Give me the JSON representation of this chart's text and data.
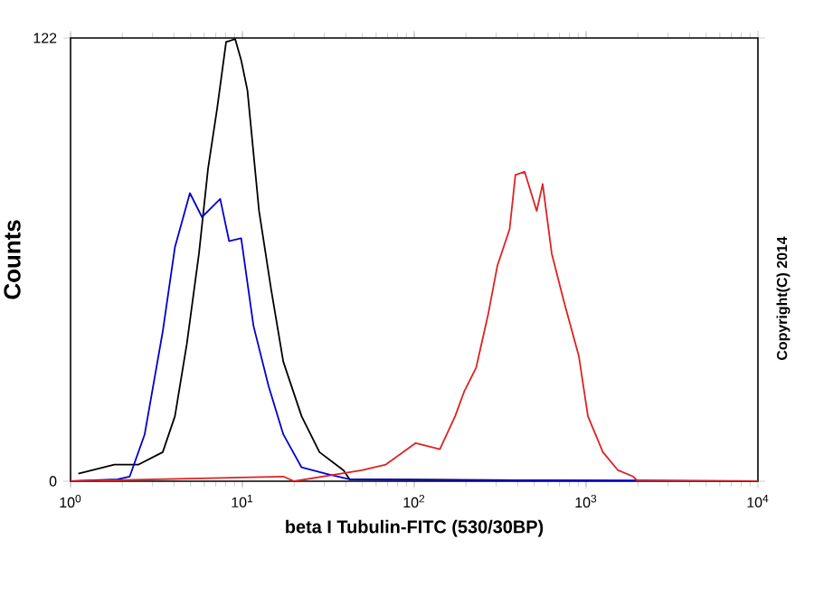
{
  "chart_data": {
    "type": "line",
    "log": "x",
    "xlabel": "beta I Tubulin-FITC (530/30BP)",
    "ylabel": "Counts",
    "xlim": [
      1,
      10000
    ],
    "ylim": [
      0,
      122
    ],
    "xticks": [
      {
        "value": 1,
        "label": "10$^{0}$"
      },
      {
        "value": 10,
        "label": "10$^{1}$"
      },
      {
        "value": 100,
        "label": "10$^{2}$"
      },
      {
        "value": 1000,
        "label": "10$^{3}$"
      },
      {
        "value": 10000,
        "label": "10$^{4}$"
      }
    ],
    "yticks": [
      0,
      122
    ],
    "annotations": [
      "Copyright(C) 2014"
    ],
    "series": [
      {
        "color": "#000000",
        "x": [
          1.11,
          1.8,
          2.49,
          3.44,
          4.05,
          4.75,
          5.59,
          6.31,
          7.13,
          8.04,
          9.08,
          9.84,
          10.7,
          12.5,
          14.7,
          17.3,
          22.1,
          28.1,
          38.8,
          42.1,
          10000
        ],
        "values": [
          2.1,
          4.6,
          4.6,
          8,
          17.9,
          37.8,
          62.7,
          86,
          102.6,
          120.9,
          121.7,
          115.9,
          107.6,
          74.4,
          52.8,
          32.9,
          17.9,
          8,
          3,
          0.5,
          0
        ]
      },
      {
        "color": "#0000cc",
        "x": [
          1,
          1.88,
          2.21,
          2.7,
          3.44,
          4.05,
          4.95,
          5.82,
          7.43,
          8.37,
          9.84,
          11.6,
          14.2,
          17.3,
          22.1,
          30.5,
          42.1,
          10000
        ],
        "values": [
          0,
          0.5,
          1.3,
          12.9,
          41.2,
          64.4,
          79.3,
          72.7,
          77.7,
          66.1,
          66.9,
          42.8,
          26.2,
          12.9,
          3.8,
          2.1,
          0.5,
          0
        ]
      },
      {
        "color": "#dd2222",
        "x": [
          1,
          17.3,
          20,
          49.5,
          68.4,
          102,
          141,
          173,
          195,
          229,
          270,
          305,
          359,
          388,
          439,
          516,
          559,
          631,
          743,
          907,
          1025,
          1253,
          1535,
          1879,
          2000,
          10000
        ],
        "values": [
          0,
          1.3,
          0,
          3,
          4.6,
          10.5,
          8.8,
          17.9,
          24.6,
          31.2,
          46.2,
          59.4,
          69.4,
          84.3,
          85.2,
          74.4,
          81.8,
          62.7,
          49.5,
          34.5,
          17.9,
          8,
          3,
          1.3,
          0,
          0
        ]
      }
    ]
  }
}
